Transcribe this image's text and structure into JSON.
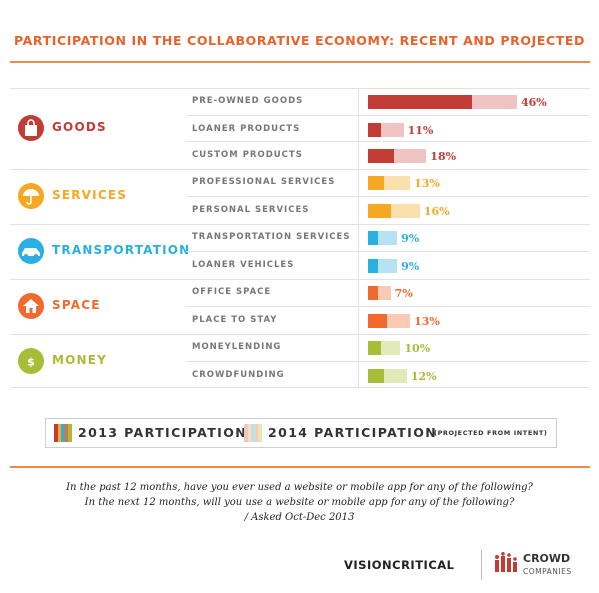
{
  "title": "PARTICIPATION IN THE COLLABORATIVE ECONOMY: RECENT AND PROJECTED",
  "chart_data": {
    "type": "bar",
    "orientation": "horizontal",
    "title": "PARTICIPATION IN THE COLLABORATIVE ECONOMY: RECENT AND PROJECTED",
    "categories": [
      "PRE-OWNED GOODS",
      "LOANER PRODUCTS",
      "CUSTOM PRODUCTS",
      "PROFESSIONAL SERVICES",
      "PERSONAL SERVICES",
      "TRANSPORTATION SERVICES",
      "LOANER VEHICLES",
      "OFFICE SPACE",
      "PLACE TO STAY",
      "MONEYLENDING",
      "CROWDFUNDING"
    ],
    "groups": [
      {
        "name": "GOODS",
        "icon": "shopping-bag-icon",
        "color": "#c23b35",
        "light": "#f0c4c2",
        "items": [
          0,
          1,
          2
        ]
      },
      {
        "name": "SERVICES",
        "icon": "umbrella-hand-icon",
        "color": "#f6a823",
        "light": "#fbe0ae",
        "items": [
          3,
          4
        ]
      },
      {
        "name": "TRANSPORTATION",
        "icon": "car-icon",
        "color": "#2ab0e0",
        "light": "#b5e3f4",
        "items": [
          5,
          6
        ]
      },
      {
        "name": "SPACE",
        "icon": "house-icon",
        "color": "#ef6a2c",
        "light": "#f9cbb3",
        "items": [
          7,
          8
        ]
      },
      {
        "name": "MONEY",
        "icon": "dollar-coin-icon",
        "color": "#a8bd37",
        "light": "#e2e9b8",
        "items": [
          9,
          10
        ]
      }
    ],
    "series": [
      {
        "name": "2013 PARTICIPATION",
        "values": [
          32,
          4,
          8,
          5,
          7,
          3,
          3,
          3,
          6,
          4,
          5
        ]
      },
      {
        "name": "2014 PARTICIPATION",
        "values": [
          46,
          11,
          18,
          13,
          16,
          9,
          9,
          7,
          13,
          10,
          12
        ]
      }
    ],
    "value_labels": [
      "46%",
      "11%",
      "18%",
      "13%",
      "16%",
      "9%",
      "9%",
      "7%",
      "13%",
      "10%",
      "12%"
    ],
    "xlim": [
      0,
      46
    ]
  },
  "legend": {
    "label_2013": "2013 PARTICIPATION",
    "label_2014": "2014 PARTICIPATION",
    "note_2014": "(PROJECTED FROM INTENT)"
  },
  "questions": [
    "In the past 12 months, have you ever used a website or mobile app for any of the following?",
    "In the next 12 months, will you use a website or mobile app for any of the following?",
    "/ Asked Oct-Dec 2013"
  ],
  "footer": {
    "left": "VISIONCRITICAL",
    "right_line1": "CROWD",
    "right_line2": "COMPANIES"
  }
}
